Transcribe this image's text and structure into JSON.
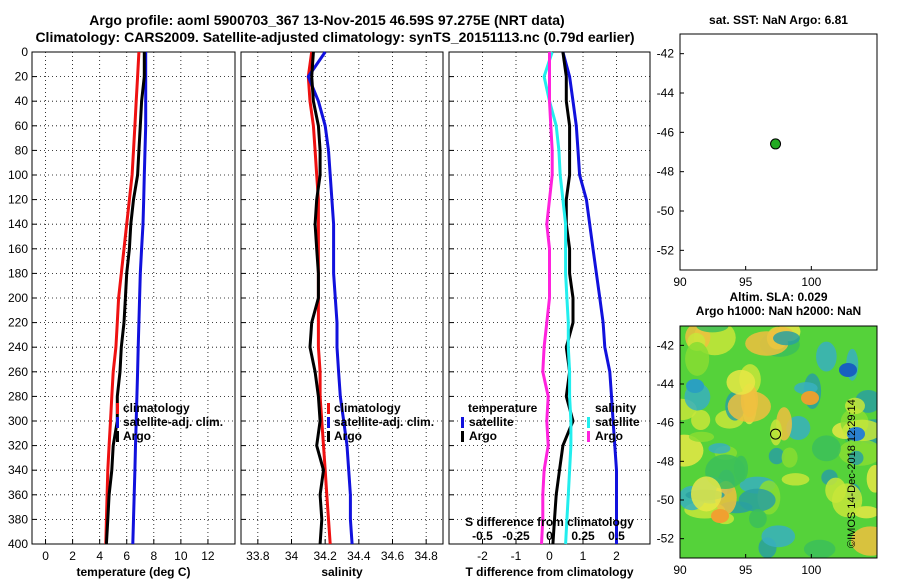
{
  "title": {
    "line1": "Argo profile: aoml 5900703_367 13-Nov-2015 46.59S 97.275E (NRT data)",
    "line2": "Climatology: CARS2009. Satellite-adjusted climatology: synTS_20151113.nc (0.79d earlier)"
  },
  "colors": {
    "climatology": "#ee1111",
    "satellite": "#1111dd",
    "argo": "#000000",
    "salinity_diff": "#ff22dd",
    "salinity_sat": "#22eeee",
    "float_marker": "#22aa22"
  },
  "chart_data": [
    {
      "type": "line",
      "name": "temperature-panel",
      "xlabel": "temperature (deg C)",
      "ylabel": "",
      "xlim": [
        -1,
        14
      ],
      "ylim": [
        400,
        0
      ],
      "xticks": [
        0,
        2,
        4,
        6,
        8,
        10,
        12
      ],
      "xtick_labels": [
        "0",
        "2",
        "4",
        "6",
        "8",
        "10",
        "12"
      ],
      "yticks": [
        0,
        20,
        40,
        60,
        80,
        100,
        120,
        140,
        160,
        180,
        200,
        220,
        240,
        260,
        280,
        300,
        320,
        340,
        360,
        380,
        400
      ],
      "grid": true,
      "legend": {
        "position": "bottom-left",
        "labels": [
          "climatology",
          "satellite-adj. clim.",
          "Argo"
        ]
      },
      "series": [
        {
          "name": "climatology",
          "color": "#ee1111",
          "depth": [
            0,
            20,
            40,
            60,
            80,
            100,
            120,
            140,
            160,
            180,
            200,
            220,
            240,
            260,
            280,
            300,
            320,
            340,
            360,
            380,
            400
          ],
          "values": [
            6.9,
            6.8,
            6.7,
            6.6,
            6.5,
            6.4,
            6.2,
            6.0,
            5.8,
            5.6,
            5.4,
            5.3,
            5.2,
            5.0,
            4.9,
            4.8,
            4.7,
            4.6,
            4.55,
            4.5,
            4.45
          ]
        },
        {
          "name": "satellite-adj. clim.",
          "color": "#1111dd",
          "depth": [
            0,
            20,
            40,
            60,
            80,
            100,
            120,
            140,
            160,
            180,
            200,
            220,
            240,
            260,
            280,
            300,
            320,
            340,
            360,
            380,
            400
          ],
          "values": [
            7.4,
            7.4,
            7.4,
            7.4,
            7.35,
            7.3,
            7.25,
            7.2,
            7.1,
            7.0,
            6.95,
            6.9,
            6.85,
            6.8,
            6.75,
            6.7,
            6.65,
            6.6,
            6.55,
            6.5,
            6.45
          ]
        },
        {
          "name": "Argo",
          "color": "#000000",
          "depth": [
            0,
            20,
            40,
            60,
            80,
            100,
            120,
            140,
            160,
            180,
            200,
            220,
            240,
            260,
            280,
            300,
            320,
            340,
            360,
            380,
            400
          ],
          "values": [
            7.3,
            7.3,
            7.1,
            7.0,
            6.9,
            6.8,
            6.5,
            6.3,
            6.2,
            6.0,
            5.9,
            5.8,
            5.6,
            5.5,
            5.3,
            5.3,
            5.0,
            4.9,
            4.7,
            4.6,
            4.5
          ]
        }
      ]
    },
    {
      "type": "line",
      "name": "salinity-panel",
      "xlabel": "salinity",
      "ylabel": "",
      "xlim": [
        33.7,
        34.9
      ],
      "ylim": [
        400,
        0
      ],
      "xticks": [
        33.8,
        34,
        34.2,
        34.4,
        34.6,
        34.8
      ],
      "xtick_labels": [
        "33.8",
        "34",
        "34.2",
        "34.4",
        "34.6",
        "34.8"
      ],
      "grid": true,
      "legend": {
        "position": "bottom-right",
        "labels": [
          "climatology",
          "satellite-adj. clim.",
          "Argo"
        ]
      },
      "series": [
        {
          "name": "climatology",
          "color": "#ee1111",
          "depth": [
            0,
            20,
            40,
            60,
            80,
            100,
            120,
            140,
            160,
            180,
            200,
            220,
            240,
            260,
            280,
            300,
            320,
            340,
            360,
            380,
            400
          ],
          "values": [
            34.12,
            34.1,
            34.11,
            34.13,
            34.14,
            34.15,
            34.16,
            34.16,
            34.16,
            34.16,
            34.16,
            34.16,
            34.16,
            34.17,
            34.17,
            34.18,
            34.19,
            34.2,
            34.21,
            34.22,
            34.23
          ]
        },
        {
          "name": "satellite-adj. clim.",
          "color": "#1111dd",
          "depth": [
            0,
            20,
            40,
            60,
            80,
            100,
            120,
            140,
            160,
            180,
            200,
            220,
            240,
            260,
            280,
            300,
            320,
            340,
            360,
            380,
            400
          ],
          "values": [
            34.2,
            34.1,
            34.16,
            34.2,
            34.22,
            34.23,
            34.24,
            34.25,
            34.25,
            34.25,
            34.26,
            34.27,
            34.27,
            34.28,
            34.29,
            34.31,
            34.33,
            34.34,
            34.35,
            34.35,
            34.36
          ]
        },
        {
          "name": "Argo",
          "color": "#000000",
          "depth": [
            0,
            20,
            40,
            60,
            80,
            100,
            120,
            140,
            160,
            180,
            200,
            220,
            240,
            260,
            280,
            300,
            320,
            340,
            360,
            380,
            400
          ],
          "values": [
            34.13,
            34.12,
            34.13,
            34.16,
            34.17,
            34.17,
            34.15,
            34.14,
            34.15,
            34.16,
            34.16,
            34.12,
            34.11,
            34.14,
            34.16,
            34.17,
            34.15,
            34.19,
            34.17,
            34.18,
            34.17
          ]
        }
      ]
    },
    {
      "type": "line",
      "name": "difference-panel",
      "xlabel": "T difference from climatology",
      "xlabel_top": "S difference from climatology",
      "ylabel": "",
      "xlim": [
        -3,
        3
      ],
      "ylim": [
        400,
        0
      ],
      "xticks": [
        -2,
        -1,
        0,
        1,
        2
      ],
      "xtick_labels": [
        "-2",
        "-1",
        "0",
        "1",
        "2"
      ],
      "xticks_s": [
        -0.5,
        -0.25,
        0,
        0.25,
        0.5
      ],
      "xtick_labels_s": [
        "-0.5",
        "-0.25",
        "0",
        "0.25",
        "0.5"
      ],
      "grid": true,
      "legend": {
        "temperature_title": "temperature",
        "salinity_title": "salinity",
        "labels_t": [
          "satellite",
          "Argo"
        ],
        "labels_s": [
          "satellite",
          "Argo"
        ]
      },
      "series": [
        {
          "name": "T satellite",
          "color": "#1111dd",
          "depth": [
            0,
            20,
            40,
            60,
            80,
            100,
            120,
            140,
            160,
            180,
            200,
            220,
            240,
            260,
            280,
            300,
            320,
            340,
            360,
            380,
            400
          ],
          "values": [
            0.4,
            0.6,
            0.7,
            0.8,
            0.85,
            0.9,
            1.1,
            1.2,
            1.3,
            1.4,
            1.5,
            1.6,
            1.65,
            1.8,
            1.85,
            1.9,
            1.95,
            2.0,
            2.0,
            2.0,
            2.0
          ]
        },
        {
          "name": "T Argo",
          "color": "#000000",
          "depth": [
            0,
            20,
            40,
            60,
            80,
            100,
            120,
            140,
            160,
            180,
            200,
            220,
            240,
            260,
            280,
            300,
            320,
            340,
            360,
            380,
            400
          ],
          "values": [
            0.4,
            0.5,
            0.5,
            0.6,
            0.6,
            0.6,
            0.5,
            0.5,
            0.6,
            0.6,
            0.7,
            0.7,
            0.5,
            0.6,
            0.5,
            0.7,
            0.4,
            0.3,
            0.2,
            0.15,
            0.1
          ]
        },
        {
          "name": "S satellite",
          "color": "#22eeee",
          "depth": [
            0,
            20,
            40,
            60,
            80,
            100,
            120,
            140,
            160,
            180,
            200,
            220,
            240,
            260,
            280,
            300,
            320,
            340,
            360,
            380,
            400
          ],
          "values": [
            0.02,
            -0.04,
            0.0,
            0.05,
            0.07,
            0.08,
            0.1,
            0.12,
            0.12,
            0.12,
            0.13,
            0.14,
            0.14,
            0.15,
            0.15,
            0.16,
            0.16,
            0.15,
            0.14,
            0.13,
            0.12
          ]
        },
        {
          "name": "S Argo",
          "color": "#ff22dd",
          "depth": [
            0,
            20,
            40,
            60,
            80,
            100,
            120,
            140,
            160,
            180,
            200,
            220,
            240,
            260,
            280,
            300,
            320,
            340,
            360,
            380,
            400
          ],
          "values": [
            0.0,
            0.0,
            0.0,
            0.01,
            0.02,
            0.02,
            0.0,
            -0.02,
            0.0,
            0.0,
            0.0,
            -0.02,
            -0.04,
            -0.05,
            -0.01,
            -0.02,
            -0.01,
            -0.04,
            -0.05,
            -0.05,
            -0.06
          ]
        }
      ]
    },
    {
      "type": "scatter",
      "name": "sst-map",
      "title": "sat. SST: NaN Argo: 6.81",
      "xlim": [
        90,
        105
      ],
      "ylim": [
        -53,
        -41
      ],
      "xticks": [
        90,
        95,
        100
      ],
      "xtick_labels": [
        "90",
        "95",
        "100"
      ],
      "yticks": [
        -42,
        -44,
        -46,
        -48,
        -50,
        -52
      ],
      "ytick_labels": [
        "-42",
        "-44",
        "-46",
        "-48",
        "-50",
        "-52"
      ],
      "points": [
        {
          "x": 97.275,
          "y": -46.59
        }
      ]
    },
    {
      "type": "heatmap",
      "name": "sla-map",
      "title_line1": "Altim. SLA: 0.029",
      "title_line2": "Argo h1000: NaN h2000: NaN",
      "xlim": [
        90,
        105
      ],
      "ylim": [
        -53,
        -41
      ],
      "xticks": [
        90,
        95,
        100
      ],
      "xtick_labels": [
        "90",
        "95",
        "100"
      ],
      "yticks": [
        -42,
        -44,
        -46,
        -48,
        -50,
        -52
      ],
      "ytick_labels": [
        "-42",
        "-44",
        "-46",
        "-48",
        "-50",
        "-52"
      ],
      "points": [
        {
          "x": 97.275,
          "y": -46.59
        }
      ]
    }
  ],
  "stamp": "©IMOS 14-Dec-2018 12:29:14"
}
